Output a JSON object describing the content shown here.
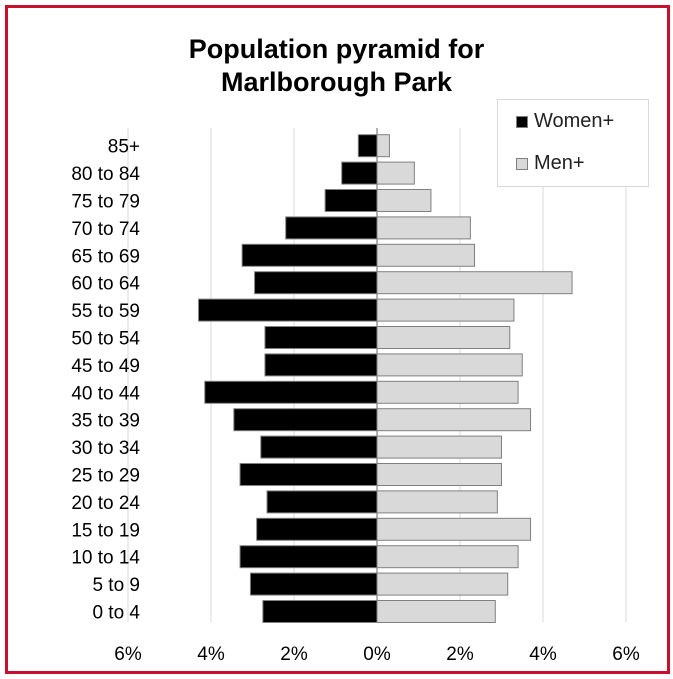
{
  "chart_data": {
    "type": "bar",
    "orientation": "horizontal",
    "subtype": "population pyramid",
    "title": [
      "Population pyramid for",
      "Marlborough Park"
    ],
    "categories": [
      "0 to 4",
      "5 to 9",
      "10 to 14",
      "15 to 19",
      "20 to 24",
      "25 to 29",
      "30 to 34",
      "35 to 39",
      "40 to 44",
      "45 to 49",
      "50 to 54",
      "55 to 59",
      "60 to 64",
      "65 to 69",
      "70 to 74",
      "75 to 79",
      "80 to 84",
      "85+"
    ],
    "series": [
      {
        "name": "Women+",
        "color": "#000000",
        "side": "left",
        "values": [
          2.75,
          3.05,
          3.3,
          2.9,
          2.65,
          3.3,
          2.8,
          3.45,
          4.15,
          2.7,
          2.7,
          4.3,
          2.95,
          3.25,
          2.2,
          1.25,
          0.85,
          0.45
        ]
      },
      {
        "name": "Men+",
        "color": "#d9d9d9",
        "side": "right",
        "values": [
          2.85,
          3.15,
          3.4,
          3.7,
          2.9,
          3.0,
          3.0,
          3.7,
          3.4,
          3.5,
          3.2,
          3.3,
          4.7,
          2.35,
          2.25,
          1.3,
          0.9,
          0.3
        ]
      }
    ],
    "xlim": [
      -6,
      6
    ],
    "x_ticks": [
      -6,
      -4,
      -2,
      0,
      2,
      4,
      6
    ],
    "x_tick_labels": [
      "6%",
      "4%",
      "2%",
      "0%",
      "2%",
      "4%",
      "6%"
    ],
    "xlabel": "",
    "ylabel": "",
    "grid": "vertical",
    "gridline_color": "#d9d9d9",
    "legend_position": "top-right",
    "frame_color": "#c8102e"
  }
}
